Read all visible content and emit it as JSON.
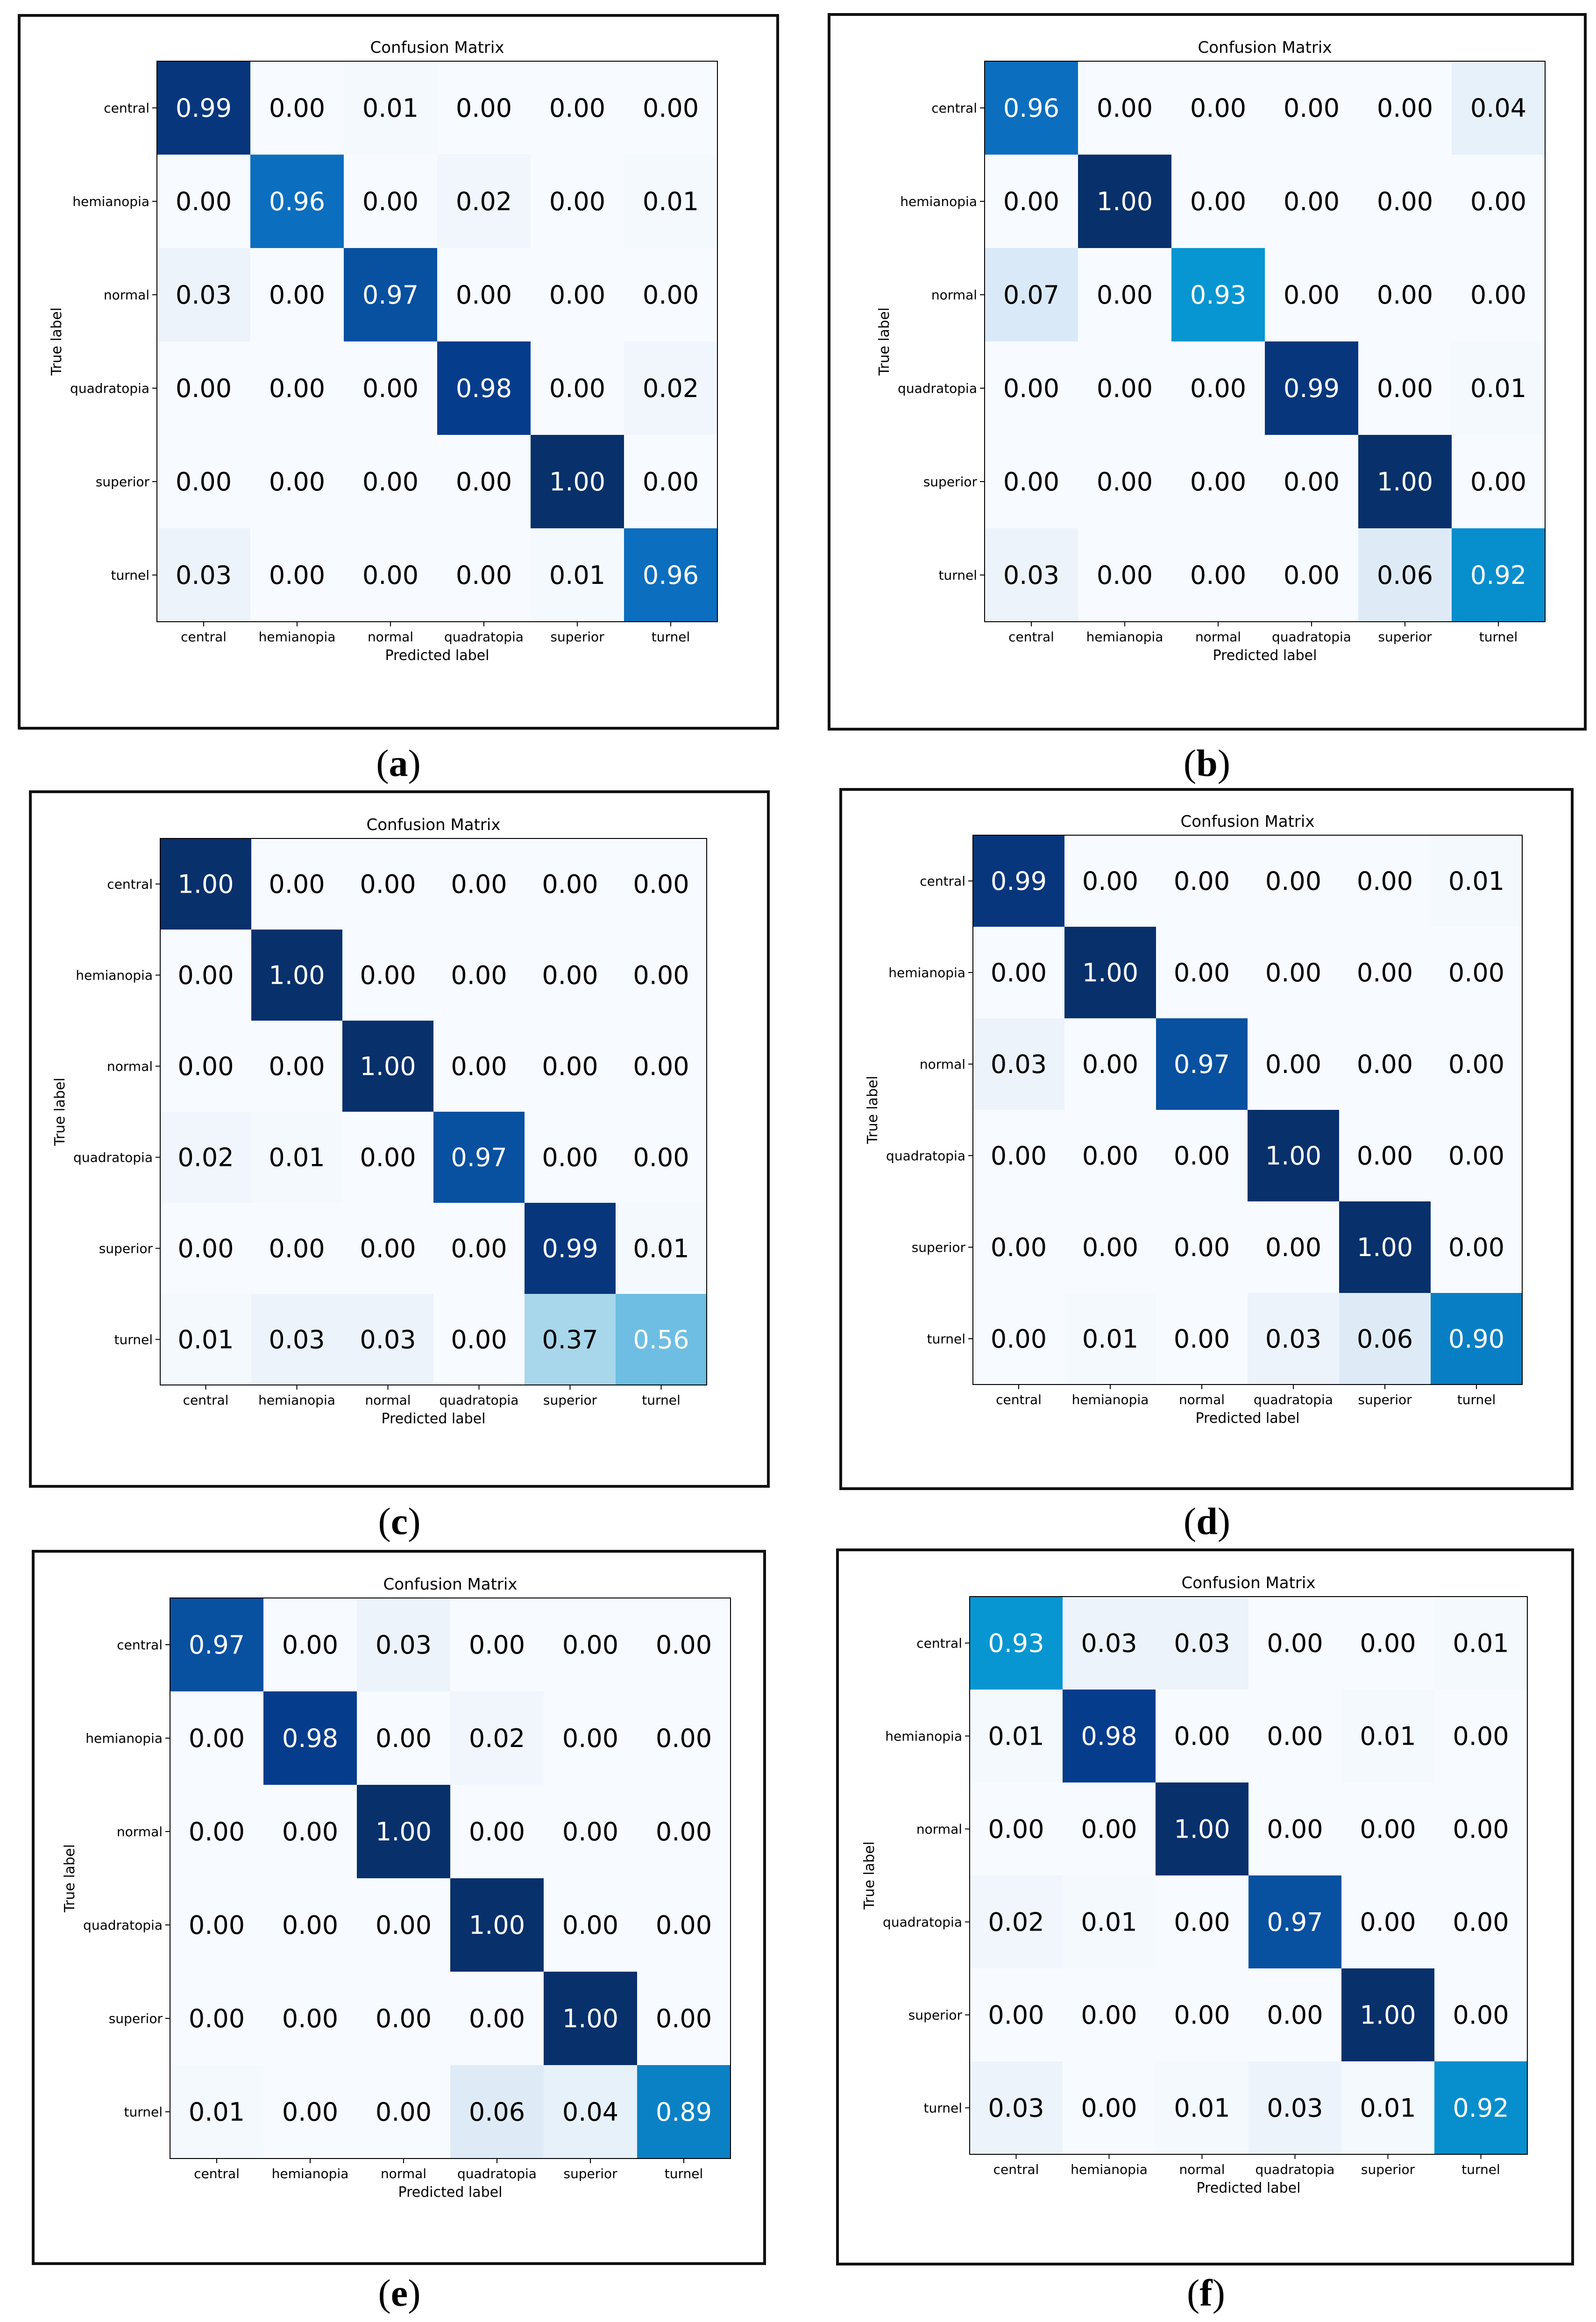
{
  "colors": {
    "panel_border": "#111111",
    "text_dark": "#000000",
    "text_light": "#ffffff"
  },
  "chart_data": [
    {
      "panel_label": "a",
      "type": "heatmap",
      "title": "Confusion Matrix",
      "xlabel": "Predicted label",
      "ylabel": "True label",
      "x_categories": [
        "central",
        "hemianopia",
        "normal",
        "quadratopia",
        "superior",
        "turnel"
      ],
      "y_categories": [
        "central",
        "hemianopia",
        "normal",
        "quadratopia",
        "superior",
        "turnel"
      ],
      "values": [
        [
          0.99,
          0.0,
          0.01,
          0.0,
          0.0,
          0.0
        ],
        [
          0.0,
          0.96,
          0.0,
          0.02,
          0.0,
          0.01
        ],
        [
          0.03,
          0.0,
          0.97,
          0.0,
          0.0,
          0.0
        ],
        [
          0.0,
          0.0,
          0.0,
          0.98,
          0.0,
          0.02
        ],
        [
          0.0,
          0.0,
          0.0,
          0.0,
          1.0,
          0.0
        ],
        [
          0.03,
          0.0,
          0.0,
          0.0,
          0.01,
          0.96
        ]
      ],
      "colormap": "Blues"
    },
    {
      "panel_label": "b",
      "type": "heatmap",
      "title": "Confusion Matrix",
      "xlabel": "Predicted label",
      "ylabel": "True label",
      "x_categories": [
        "central",
        "hemianopia",
        "normal",
        "quadratopia",
        "superior",
        "turnel"
      ],
      "y_categories": [
        "central",
        "hemianopia",
        "normal",
        "quadratopia",
        "superior",
        "turnel"
      ],
      "values": [
        [
          0.96,
          0.0,
          0.0,
          0.0,
          0.0,
          0.04
        ],
        [
          0.0,
          1.0,
          0.0,
          0.0,
          0.0,
          0.0
        ],
        [
          0.07,
          0.0,
          0.93,
          0.0,
          0.0,
          0.0
        ],
        [
          0.0,
          0.0,
          0.0,
          0.99,
          0.0,
          0.01
        ],
        [
          0.0,
          0.0,
          0.0,
          0.0,
          1.0,
          0.0
        ],
        [
          0.03,
          0.0,
          0.0,
          0.0,
          0.06,
          0.92
        ]
      ],
      "colormap": "Blues"
    },
    {
      "panel_label": "c",
      "type": "heatmap",
      "title": "Confusion Matrix",
      "xlabel": "Predicted label",
      "ylabel": "True label",
      "x_categories": [
        "central",
        "hemianopia",
        "normal",
        "quadratopia",
        "superior",
        "turnel"
      ],
      "y_categories": [
        "central",
        "hemianopia",
        "normal",
        "quadratopia",
        "superior",
        "turnel"
      ],
      "values": [
        [
          1.0,
          0.0,
          0.0,
          0.0,
          0.0,
          0.0
        ],
        [
          0.0,
          1.0,
          0.0,
          0.0,
          0.0,
          0.0
        ],
        [
          0.0,
          0.0,
          1.0,
          0.0,
          0.0,
          0.0
        ],
        [
          0.02,
          0.01,
          0.0,
          0.97,
          0.0,
          0.0
        ],
        [
          0.0,
          0.0,
          0.0,
          0.0,
          0.99,
          0.01
        ],
        [
          0.01,
          0.03,
          0.03,
          0.0,
          0.37,
          0.56
        ]
      ],
      "colormap": "Blues"
    },
    {
      "panel_label": "d",
      "type": "heatmap",
      "title": "Confusion Matrix",
      "xlabel": "Predicted label",
      "ylabel": "True label",
      "x_categories": [
        "central",
        "hemianopia",
        "normal",
        "quadratopia",
        "superior",
        "turnel"
      ],
      "y_categories": [
        "central",
        "hemianopia",
        "normal",
        "quadratopia",
        "superior",
        "turnel"
      ],
      "values": [
        [
          0.99,
          0.0,
          0.0,
          0.0,
          0.0,
          0.01
        ],
        [
          0.0,
          1.0,
          0.0,
          0.0,
          0.0,
          0.0
        ],
        [
          0.03,
          0.0,
          0.97,
          0.0,
          0.0,
          0.0
        ],
        [
          0.0,
          0.0,
          0.0,
          1.0,
          0.0,
          0.0
        ],
        [
          0.0,
          0.0,
          0.0,
          0.0,
          1.0,
          0.0
        ],
        [
          0.0,
          0.01,
          0.0,
          0.03,
          0.06,
          0.9
        ]
      ],
      "colormap": "Blues"
    },
    {
      "panel_label": "e",
      "type": "heatmap",
      "title": "Confusion Matrix",
      "xlabel": "Predicted label",
      "ylabel": "True label",
      "x_categories": [
        "central",
        "hemianopia",
        "normal",
        "quadratopia",
        "superior",
        "turnel"
      ],
      "y_categories": [
        "central",
        "hemianopia",
        "normal",
        "quadratopia",
        "superior",
        "turnel"
      ],
      "values": [
        [
          0.97,
          0.0,
          0.03,
          0.0,
          0.0,
          0.0
        ],
        [
          0.0,
          0.98,
          0.0,
          0.02,
          0.0,
          0.0
        ],
        [
          0.0,
          0.0,
          1.0,
          0.0,
          0.0,
          0.0
        ],
        [
          0.0,
          0.0,
          0.0,
          1.0,
          0.0,
          0.0
        ],
        [
          0.0,
          0.0,
          0.0,
          0.0,
          1.0,
          0.0
        ],
        [
          0.01,
          0.0,
          0.0,
          0.06,
          0.04,
          0.89
        ]
      ],
      "colormap": "Blues"
    },
    {
      "panel_label": "f",
      "type": "heatmap",
      "title": "Confusion Matrix",
      "xlabel": "Predicted label",
      "ylabel": "True label",
      "x_categories": [
        "central",
        "hemianopia",
        "normal",
        "quadratopia",
        "superior",
        "turnel"
      ],
      "y_categories": [
        "central",
        "hemianopia",
        "normal",
        "quadratopia",
        "superior",
        "turnel"
      ],
      "values": [
        [
          0.93,
          0.03,
          0.03,
          0.0,
          0.0,
          0.01
        ],
        [
          0.01,
          0.98,
          0.0,
          0.0,
          0.01,
          0.0
        ],
        [
          0.0,
          0.0,
          1.0,
          0.0,
          0.0,
          0.0
        ],
        [
          0.02,
          0.01,
          0.0,
          0.97,
          0.0,
          0.0
        ],
        [
          0.0,
          0.0,
          0.0,
          0.0,
          1.0,
          0.0
        ],
        [
          0.03,
          0.0,
          0.01,
          0.03,
          0.01,
          0.92
        ]
      ],
      "colormap": "Blues"
    }
  ]
}
